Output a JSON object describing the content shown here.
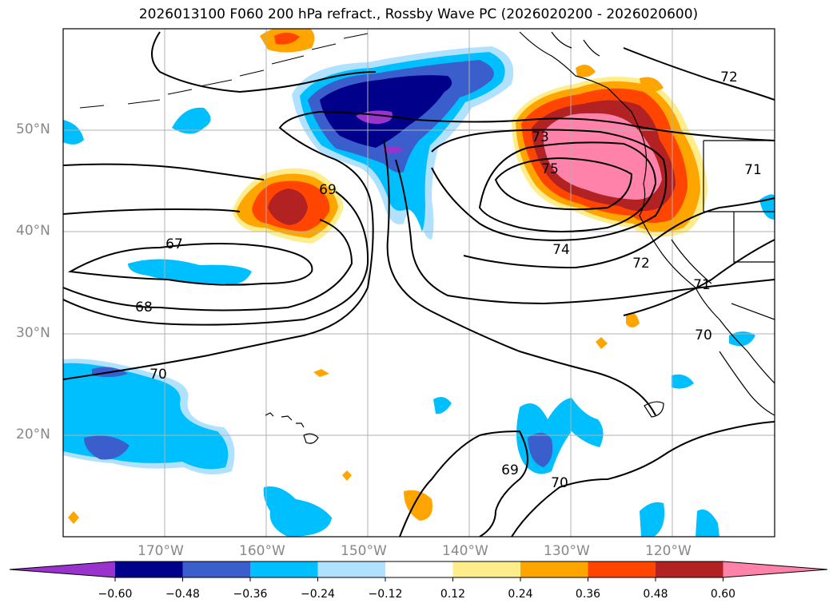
{
  "title": "2026013100 F060 200 hPa refract., Rossby Wave PC (2026020200 - 2026020600)",
  "lat_labels": [
    "50°N",
    "40°N",
    "30°N",
    "20°N"
  ],
  "lon_labels": [
    "170°W",
    "160°W",
    "150°W",
    "140°W",
    "130°W",
    "120°W"
  ],
  "contour_labels": [
    "67",
    "68",
    "69",
    "70",
    "71",
    "72",
    "73",
    "74",
    "75",
    "69",
    "70",
    "70",
    "71",
    "72"
  ],
  "colorbar": {
    "tick_labels": [
      "−0.60",
      "−0.48",
      "−0.36",
      "−0.24",
      "−0.12",
      "0.12",
      "0.24",
      "0.36",
      "0.48",
      "0.60"
    ],
    "colors": [
      "#9a32cd",
      "#00008b",
      "#3a5fcd",
      "#00bfff",
      "#b0e2ff",
      "#ffffff",
      "#ffec8b",
      "#ffa500",
      "#ff4500",
      "#b22222",
      "#ff82ab"
    ]
  },
  "colors": {
    "dark_purple": "#9a32cd",
    "navy": "#00008b",
    "blue": "#3a5fcd",
    "deep_sky": "#00bfff",
    "light_blue": "#b0e2ff",
    "light_yellow": "#ffec8b",
    "orange": "#ffa500",
    "orange_red": "#ff4500",
    "firebrick": "#b22222",
    "pink": "#ff82ab",
    "grid": "#b0b0b0",
    "axis_label": "#888888"
  }
}
